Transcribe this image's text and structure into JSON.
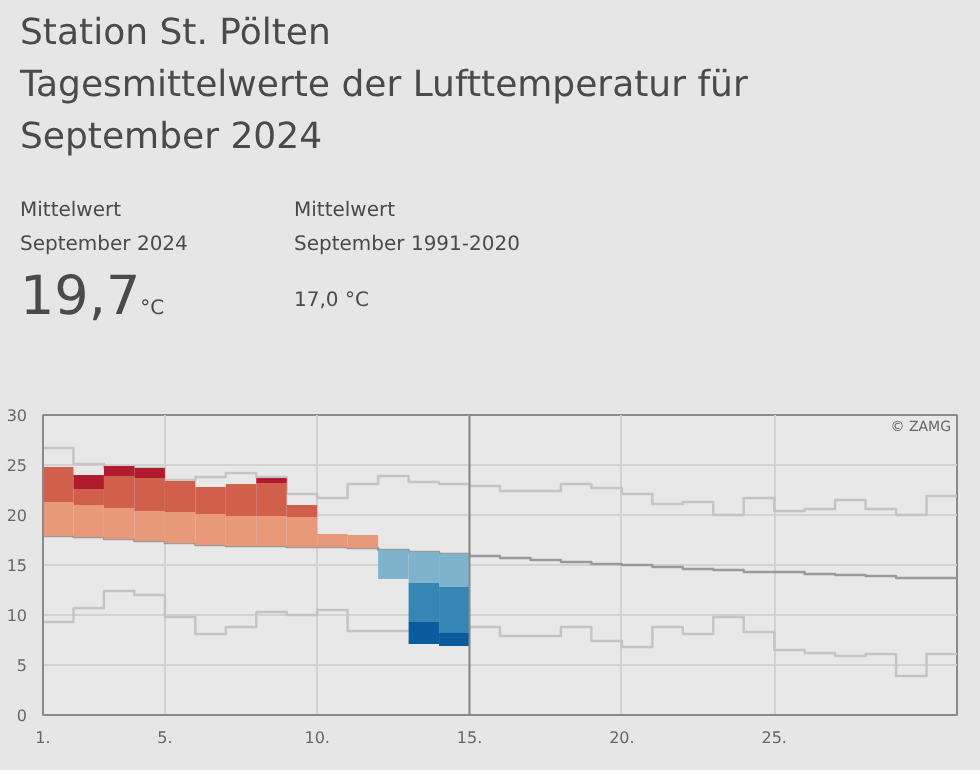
{
  "chart_data": {
    "type": "bar",
    "title": "Station St. Pölten",
    "subtitle": "Tagesmittelwerte der Lufttemperatur für September 2024",
    "annotations": [
      "Mittelwert\nSeptember 2024",
      "19,7°C",
      "Mittelwert\nSeptember 1991-2020",
      "17,0 °C",
      "© ZAMG"
    ],
    "x": [
      1.5,
      2.5,
      3.5,
      4.5,
      5.5,
      6.5,
      7.5,
      8.5,
      9.5,
      10.5,
      11.5,
      12.5,
      13.5,
      14.5
    ],
    "series": [
      {
        "color": "#e8997a",
        "base": [
          17.9,
          17.8,
          17.6,
          17.4,
          17.2,
          17.0,
          16.9,
          16.9,
          16.8,
          16.8,
          16.7,
          null,
          null,
          null
        ],
        "values": [
          3.4,
          3.2,
          3.1,
          3.0,
          3.1,
          3.1,
          3.0,
          3.0,
          3.0,
          1.3,
          1.3,
          null,
          null,
          null
        ]
      },
      {
        "color": "#d0604b",
        "base": [
          21.3,
          21.0,
          20.7,
          20.4,
          20.3,
          20.1,
          19.9,
          19.9,
          19.8,
          null,
          null,
          null,
          null,
          null
        ],
        "values": [
          3.5,
          1.6,
          3.2,
          3.3,
          3.1,
          2.7,
          3.2,
          3.3,
          1.2,
          null,
          null,
          null,
          null,
          null
        ]
      },
      {
        "color": "#b01c2e",
        "base": [
          null,
          22.6,
          23.9,
          23.7,
          null,
          null,
          null,
          23.2,
          null,
          null,
          null,
          null,
          null,
          null
        ],
        "values": [
          null,
          1.4,
          1.0,
          1.0,
          null,
          null,
          null,
          0.5,
          null,
          null,
          null,
          null,
          null,
          null
        ]
      },
      {
        "color": "#7fb3cc",
        "base": [
          null,
          null,
          null,
          null,
          null,
          null,
          null,
          null,
          null,
          null,
          null,
          13.6,
          13.2,
          12.8
        ],
        "values": [
          null,
          null,
          null,
          null,
          null,
          null,
          null,
          null,
          null,
          null,
          null,
          2.9,
          3.1,
          3.3
        ]
      },
      {
        "color": "#3585b5",
        "base": [
          null,
          null,
          null,
          null,
          null,
          null,
          null,
          null,
          null,
          null,
          null,
          null,
          9.3,
          8.2
        ],
        "values": [
          null,
          null,
          null,
          null,
          null,
          null,
          null,
          null,
          null,
          null,
          null,
          null,
          3.9,
          4.6
        ]
      },
      {
        "color": "#0b5c9e",
        "base": [
          null,
          null,
          null,
          null,
          null,
          null,
          null,
          null,
          null,
          null,
          null,
          null,
          7.1,
          6.9
        ],
        "values": [
          null,
          null,
          null,
          null,
          null,
          null,
          null,
          null,
          null,
          null,
          null,
          null,
          2.2,
          1.3
        ]
      },
      {
        "type": "step",
        "color": "#c4c4c4",
        "x": [
          1,
          2,
          3,
          4,
          5,
          6,
          7,
          8,
          9,
          10,
          11,
          12,
          13,
          14,
          15,
          16,
          17,
          18,
          19,
          20,
          21,
          22,
          23,
          24,
          25,
          26,
          27,
          28,
          29,
          30,
          31
        ],
        "values": [
          26.7,
          25.1,
          24.8,
          24.7,
          23.5,
          23.8,
          24.2,
          23.8,
          22.1,
          21.7,
          23.1,
          23.9,
          23.3,
          23.1,
          22.9,
          22.4,
          22.4,
          23.1,
          22.7,
          22.1,
          21.1,
          21.3,
          20.0,
          21.7,
          20.4,
          20.6,
          21.5,
          20.6,
          20.0,
          21.9,
          21.9
        ]
      },
      {
        "type": "step",
        "color": "#9a9a9a",
        "x": [
          1,
          2,
          3,
          4,
          5,
          6,
          7,
          8,
          9,
          10,
          11,
          12,
          13,
          14,
          15,
          16,
          17,
          18,
          19,
          20,
          21,
          22,
          23,
          24,
          25,
          26,
          27,
          28,
          29,
          30,
          31
        ],
        "values": [
          17.9,
          17.8,
          17.6,
          17.4,
          17.2,
          17.0,
          16.9,
          16.9,
          16.8,
          16.8,
          16.7,
          16.5,
          16.3,
          16.1,
          15.9,
          15.7,
          15.5,
          15.3,
          15.1,
          15.0,
          14.8,
          14.6,
          14.5,
          14.3,
          14.3,
          14.1,
          14.0,
          13.9,
          13.7,
          13.7,
          13.7
        ]
      },
      {
        "type": "step",
        "color": "#c4c4c4",
        "x": [
          1,
          2,
          3,
          4,
          5,
          6,
          7,
          8,
          9,
          10,
          11,
          12,
          13,
          14,
          15,
          16,
          17,
          18,
          19,
          20,
          21,
          22,
          23,
          24,
          25,
          26,
          27,
          28,
          29,
          30,
          31
        ],
        "values": [
          9.3,
          10.7,
          12.4,
          12.0,
          9.8,
          8.1,
          8.8,
          10.3,
          10.0,
          10.5,
          8.4,
          8.4,
          null,
          null,
          8.8,
          7.9,
          7.9,
          8.8,
          7.4,
          6.8,
          8.8,
          8.1,
          9.8,
          8.3,
          6.5,
          6.2,
          5.9,
          6.1,
          3.9,
          6.1,
          6.1
        ]
      }
    ],
    "xlim": [
      1,
      31
    ],
    "xticks": [
      {
        "value": 1,
        "label": "1."
      },
      {
        "value": 5,
        "label": "5."
      },
      {
        "value": 10,
        "label": "10."
      },
      {
        "value": 15,
        "label": "15."
      },
      {
        "value": 20,
        "label": "20."
      },
      {
        "value": 25,
        "label": "25."
      }
    ],
    "ylim": [
      0,
      30
    ],
    "yticks": [
      0,
      5,
      10,
      15,
      20,
      25,
      30
    ],
    "ref_lines": [
      {
        "axis": "x",
        "value": 15,
        "color": "#8a8a8a"
      }
    ],
    "grid": true,
    "marker": "none",
    "line_style": "solid"
  }
}
